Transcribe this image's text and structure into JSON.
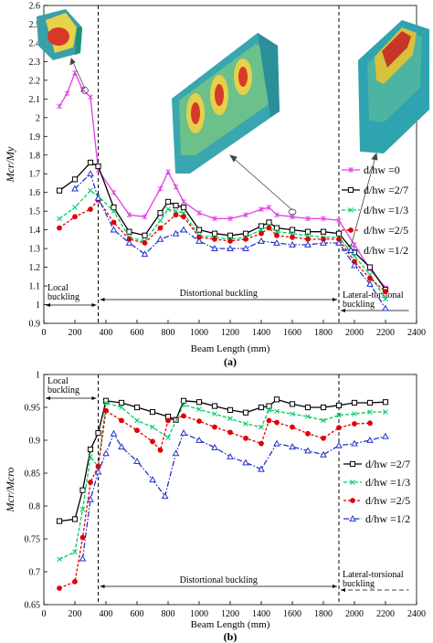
{
  "chart_data": [
    {
      "type": "line",
      "panel_label": "(a)",
      "xlabel": "Beam Length (mm)",
      "ylabel": "Mcr/My",
      "xlim": [
        0,
        2400
      ],
      "ylim": [
        0.9,
        2.6
      ],
      "x_ticks": [
        "0",
        "200",
        "400",
        "600",
        "800",
        "1000",
        "1200",
        "1400",
        "1600",
        "1800",
        "2000",
        "2200",
        "2400"
      ],
      "y_ticks": [
        "0.9",
        "1",
        "1.1",
        "1.2",
        "1.3",
        "1.4",
        "1.5",
        "1.6",
        "1.7",
        "1.8",
        "1.9",
        "2",
        "2.1",
        "2.2",
        "2.3",
        "2.4",
        "2.5",
        "2.6"
      ],
      "vlines": [
        350,
        1900
      ],
      "regions": [
        {
          "label": "Local buckling",
          "from": 0,
          "to": 350
        },
        {
          "label": "Distortional buckling",
          "from": 350,
          "to": 1900
        },
        {
          "label": "Lateral-torsional buckling",
          "from": 1900,
          "to": 2200
        }
      ],
      "legend_position": "right",
      "series": [
        {
          "name": "d/hw =0",
          "color": "#e040e0",
          "marker": "star",
          "x": [
            100,
            150,
            200,
            250,
            300,
            350,
            450,
            550,
            650,
            750,
            800,
            850,
            900,
            1000,
            1100,
            1200,
            1300,
            1400,
            1450,
            1500,
            1600,
            1700,
            1800,
            1900,
            2000,
            2100,
            2200
          ],
          "y": [
            2.06,
            2.13,
            2.24,
            2.15,
            2.11,
            1.72,
            1.6,
            1.48,
            1.47,
            1.62,
            1.71,
            1.63,
            1.55,
            1.49,
            1.46,
            1.46,
            1.48,
            1.51,
            1.52,
            1.48,
            1.47,
            1.46,
            1.46,
            1.45,
            1.32,
            1.19,
            1.09
          ]
        },
        {
          "name": "d/hw =2/7",
          "color": "#000000",
          "marker": "square",
          "x": [
            100,
            200,
            300,
            350,
            450,
            550,
            650,
            750,
            800,
            850,
            900,
            1000,
            1100,
            1200,
            1300,
            1400,
            1450,
            1500,
            1600,
            1700,
            1800,
            1900,
            2000,
            2100,
            2200
          ],
          "y": [
            1.61,
            1.67,
            1.76,
            1.74,
            1.52,
            1.39,
            1.37,
            1.49,
            1.55,
            1.53,
            1.52,
            1.4,
            1.38,
            1.37,
            1.38,
            1.42,
            1.44,
            1.41,
            1.4,
            1.39,
            1.39,
            1.38,
            1.28,
            1.2,
            1.08
          ]
        },
        {
          "name": "d/hw =1/3",
          "color": "#00cc66",
          "marker": "x",
          "x": [
            100,
            200,
            300,
            350,
            450,
            550,
            650,
            750,
            800,
            850,
            900,
            1000,
            1100,
            1200,
            1300,
            1400,
            1450,
            1500,
            1600,
            1700,
            1800,
            1900,
            2000,
            2100,
            2200
          ],
          "y": [
            1.46,
            1.52,
            1.61,
            1.58,
            1.5,
            1.36,
            1.34,
            1.45,
            1.51,
            1.5,
            1.49,
            1.37,
            1.36,
            1.35,
            1.36,
            1.4,
            1.42,
            1.39,
            1.38,
            1.37,
            1.36,
            1.36,
            1.26,
            1.16,
            1.03
          ]
        },
        {
          "name": "d/hw =2/5",
          "color": "#e00000",
          "marker": "dot",
          "x": [
            100,
            200,
            300,
            350,
            450,
            550,
            650,
            750,
            850,
            900,
            1000,
            1100,
            1200,
            1300,
            1400,
            1450,
            1500,
            1600,
            1700,
            1800,
            1900,
            2000,
            2100,
            2200
          ],
          "y": [
            1.41,
            1.47,
            1.51,
            1.56,
            1.44,
            1.35,
            1.33,
            1.41,
            1.48,
            1.47,
            1.36,
            1.35,
            1.34,
            1.35,
            1.38,
            1.41,
            1.37,
            1.36,
            1.35,
            1.35,
            1.35,
            1.23,
            1.14,
            1.07
          ]
        },
        {
          "name": "d/hw =1/2",
          "color": "#2233cc",
          "marker": "triangle",
          "x": [
            200,
            300,
            350,
            450,
            550,
            650,
            750,
            850,
            900,
            1000,
            1100,
            1200,
            1300,
            1400,
            1500,
            1600,
            1700,
            1800,
            1900,
            2000,
            2100,
            2200
          ],
          "y": [
            1.62,
            1.7,
            1.57,
            1.4,
            1.33,
            1.27,
            1.35,
            1.38,
            1.4,
            1.34,
            1.3,
            1.3,
            1.3,
            1.34,
            1.33,
            1.32,
            1.32,
            1.33,
            1.33,
            1.21,
            1.11,
            0.98
          ]
        }
      ]
    },
    {
      "type": "line",
      "panel_label": "(b)",
      "xlabel": "Beam Length (mm)",
      "ylabel": "Mcr/Mcro",
      "xlim": [
        0,
        2400
      ],
      "ylim": [
        0.65,
        1.0
      ],
      "x_ticks": [
        "0",
        "200",
        "400",
        "600",
        "800",
        "1000",
        "1200",
        "1400",
        "1600",
        "1800",
        "2000",
        "2200",
        "2400"
      ],
      "y_ticks": [
        "0.65",
        "0.7",
        "0.75",
        "0.8",
        "0.85",
        "0.9",
        "0.95",
        "1"
      ],
      "vlines": [
        350,
        1900
      ],
      "regions": [
        {
          "label": "Local buckling",
          "from": 0,
          "to": 350
        },
        {
          "label": "Distortional buckling",
          "from": 350,
          "to": 1900
        },
        {
          "label": "Lateral-torsional buckling",
          "from": 1900,
          "to": 2200
        }
      ],
      "legend_position": "right",
      "series": [
        {
          "name": "d/hw =2/7",
          "color": "#000000",
          "marker": "square",
          "x": [
            100,
            200,
            250,
            300,
            350,
            400,
            500,
            600,
            700,
            800,
            850,
            900,
            1000,
            1100,
            1200,
            1300,
            1400,
            1450,
            1500,
            1600,
            1700,
            1800,
            1900,
            2000,
            2100,
            2200
          ],
          "y": [
            0.777,
            0.78,
            0.824,
            0.886,
            0.911,
            0.96,
            0.957,
            0.95,
            0.943,
            0.936,
            0.931,
            0.96,
            0.958,
            0.952,
            0.946,
            0.942,
            0.95,
            0.952,
            0.962,
            0.955,
            0.95,
            0.95,
            0.953,
            0.957,
            0.957,
            0.958
          ]
        },
        {
          "name": "d/hw =1/3",
          "color": "#00cc66",
          "marker": "x",
          "x": [
            100,
            200,
            250,
            300,
            350,
            400,
            500,
            600,
            700,
            800,
            900,
            1000,
            1100,
            1200,
            1300,
            1400,
            1450,
            1500,
            1600,
            1700,
            1800,
            1900,
            2000,
            2100,
            2200
          ],
          "y": [
            0.719,
            0.73,
            0.795,
            0.875,
            0.86,
            0.957,
            0.95,
            0.93,
            0.92,
            0.904,
            0.954,
            0.947,
            0.94,
            0.933,
            0.925,
            0.92,
            0.946,
            0.944,
            0.94,
            0.936,
            0.93,
            0.938,
            0.94,
            0.943,
            0.943
          ]
        },
        {
          "name": "d/hw =2/5",
          "color": "#e00000",
          "marker": "dot",
          "x": [
            100,
            200,
            250,
            300,
            350,
            400,
            500,
            600,
            700,
            750,
            800,
            900,
            1000,
            1100,
            1200,
            1300,
            1400,
            1450,
            1500,
            1600,
            1700,
            1800,
            1900,
            2000,
            2100
          ],
          "y": [
            0.675,
            0.685,
            0.752,
            0.836,
            0.86,
            0.945,
            0.93,
            0.915,
            0.898,
            0.885,
            0.93,
            0.937,
            0.929,
            0.92,
            0.912,
            0.903,
            0.895,
            0.93,
            0.927,
            0.92,
            0.91,
            0.903,
            0.919,
            0.925,
            0.926
          ]
        },
        {
          "name": "d/hw =1/2",
          "color": "#2233cc",
          "marker": "triangle",
          "x": [
            250,
            300,
            350,
            400,
            450,
            500,
            600,
            700,
            780,
            850,
            900,
            1000,
            1100,
            1200,
            1300,
            1400,
            1500,
            1600,
            1700,
            1800,
            1900,
            2000,
            2100,
            2200
          ],
          "y": [
            0.72,
            0.81,
            0.852,
            0.88,
            0.91,
            0.89,
            0.868,
            0.84,
            0.815,
            0.88,
            0.911,
            0.9,
            0.889,
            0.875,
            0.866,
            0.856,
            0.895,
            0.89,
            0.884,
            0.878,
            0.892,
            0.895,
            0.9,
            0.906
          ]
        }
      ]
    }
  ]
}
